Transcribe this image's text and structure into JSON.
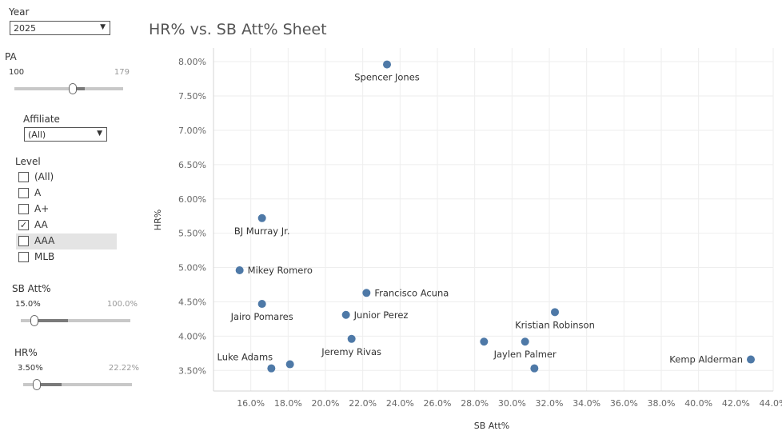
{
  "filters": {
    "year": {
      "label": "Year",
      "value": "2025"
    },
    "pa": {
      "label": "PA",
      "min": "100",
      "max": "179"
    },
    "affiliate": {
      "label": "Affiliate",
      "value": "(All)"
    },
    "level": {
      "label": "Level",
      "options": [
        {
          "label": "(All)",
          "checked": false
        },
        {
          "label": "A",
          "checked": false
        },
        {
          "label": "A+",
          "checked": false
        },
        {
          "label": "AA",
          "checked": true
        },
        {
          "label": "AAA",
          "checked": false
        },
        {
          "label": "MLB",
          "checked": false
        }
      ]
    },
    "sb_att": {
      "label": "SB Att%",
      "min": "15.0%",
      "max": "100.0%"
    },
    "hr": {
      "label": "HR%",
      "min": "3.50%",
      "max": "22.22%"
    }
  },
  "chart_data": {
    "type": "scatter",
    "title": "HR% vs. SB Att% Sheet",
    "xlabel": "SB Att%",
    "ylabel": "HR%",
    "xlim": [
      14.0,
      44.0
    ],
    "ylim": [
      3.2,
      8.2
    ],
    "x_ticks": [
      16,
      18,
      20,
      22,
      24,
      26,
      28,
      30,
      32,
      34,
      36,
      38,
      40,
      42,
      44
    ],
    "y_ticks": [
      3.5,
      4.0,
      4.5,
      5.0,
      5.5,
      6.0,
      6.5,
      7.0,
      7.5,
      8.0
    ],
    "grid": true,
    "point_color": "#4e79a7",
    "points": [
      {
        "label": "Spencer Jones",
        "x": 23.3,
        "y": 7.96,
        "pos": "below"
      },
      {
        "label": "BJ Murray Jr.",
        "x": 16.6,
        "y": 5.72,
        "pos": "below"
      },
      {
        "label": "Mikey Romero",
        "x": 15.4,
        "y": 4.96,
        "pos": "right"
      },
      {
        "label": "Francisco Acuna",
        "x": 22.2,
        "y": 4.63,
        "pos": "right"
      },
      {
        "label": "Jairo Pomares",
        "x": 16.6,
        "y": 4.47,
        "pos": "below"
      },
      {
        "label": "Junior Perez",
        "x": 21.1,
        "y": 4.31,
        "pos": "right"
      },
      {
        "label": "Kristian Robinson",
        "x": 32.3,
        "y": 4.35,
        "pos": "below"
      },
      {
        "label": "Jeremy Rivas",
        "x": 21.4,
        "y": 3.96,
        "pos": "below"
      },
      {
        "label": "",
        "x": 28.5,
        "y": 3.92,
        "pos": "none"
      },
      {
        "label": "Jaylen Palmer",
        "x": 30.7,
        "y": 3.92,
        "pos": "below"
      },
      {
        "label": "",
        "x": 31.2,
        "y": 3.53,
        "pos": "none"
      },
      {
        "label": "",
        "x": 18.1,
        "y": 3.59,
        "pos": "none"
      },
      {
        "label": "Luke Adams",
        "x": 17.1,
        "y": 3.53,
        "pos": "above-left"
      },
      {
        "label": "Kemp Alderman",
        "x": 42.8,
        "y": 3.66,
        "pos": "left"
      }
    ]
  }
}
